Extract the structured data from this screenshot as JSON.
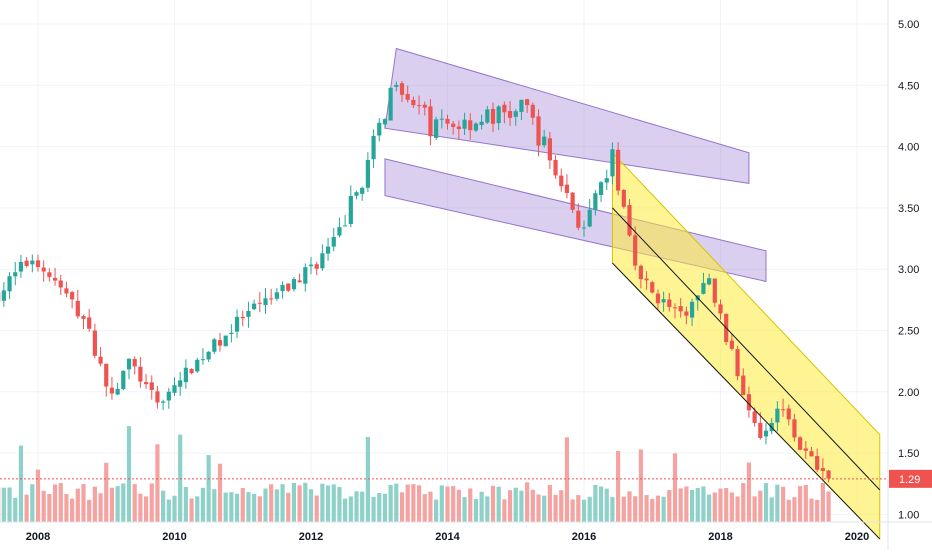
{
  "chart_data": {
    "type": "candlestick",
    "interval": "monthly",
    "x_axis": {
      "ticks": [
        "2008",
        "2010",
        "2012",
        "2014",
        "2016",
        "2018",
        "2020"
      ],
      "range": [
        "2007-06",
        "2020-05"
      ]
    },
    "y_axis": {
      "position": "right",
      "ticks": [
        "1.00",
        "1.50",
        "2.00",
        "2.50",
        "3.00",
        "3.50",
        "4.00",
        "4.50",
        "5.00"
      ],
      "range": [
        0.95,
        5.1
      ]
    },
    "grid": true,
    "last_price": {
      "label": "1.29",
      "value": 1.29
    },
    "colors": {
      "up": "#26a69a",
      "down": "#ef5350",
      "volume_up": "#8dd1c9",
      "volume_down": "#f5a3a1",
      "last_price": "#ef5350",
      "channel_purple": "#9575cd",
      "channel_yellow": "#ffeb3b",
      "grid": "#f0f3fa"
    },
    "anchors": [
      {
        "t": "2007-06",
        "c": 2.8
      },
      {
        "t": "2007-12",
        "c": 3.1
      },
      {
        "t": "2008-03",
        "c": 2.95
      },
      {
        "t": "2008-09",
        "c": 2.6
      },
      {
        "t": "2009-02",
        "c": 1.95
      },
      {
        "t": "2009-05",
        "c": 2.25
      },
      {
        "t": "2009-10",
        "c": 1.9
      },
      {
        "t": "2010-05",
        "c": 2.25
      },
      {
        "t": "2011-01",
        "c": 2.6
      },
      {
        "t": "2011-09",
        "c": 2.85
      },
      {
        "t": "2012-05",
        "c": 3.2
      },
      {
        "t": "2012-11",
        "c": 3.85
      },
      {
        "t": "2013-04",
        "c": 4.6
      },
      {
        "t": "2013-10",
        "c": 4.15
      },
      {
        "t": "2014-04",
        "c": 4.2
      },
      {
        "t": "2015-03",
        "c": 4.3
      },
      {
        "t": "2015-09",
        "c": 3.7
      },
      {
        "t": "2016-01",
        "c": 3.3
      },
      {
        "t": "2016-06",
        "c": 3.9
      },
      {
        "t": "2016-11",
        "c": 2.9
      },
      {
        "t": "2017-06",
        "c": 2.6
      },
      {
        "t": "2017-11",
        "c": 2.9
      },
      {
        "t": "2018-05",
        "c": 2.0
      },
      {
        "t": "2018-08",
        "c": 1.65
      },
      {
        "t": "2018-12",
        "c": 1.9
      },
      {
        "t": "2019-03",
        "c": 1.55
      },
      {
        "t": "2019-08",
        "c": 1.29
      }
    ],
    "channels": [
      {
        "name": "",
        "color": "#9575cd",
        "upper": [
          [
            "2013-04",
            4.8
          ],
          [
            "2018-06",
            3.95
          ]
        ],
        "lower": [
          [
            "2013-02",
            4.15
          ],
          [
            "2018-06",
            3.7
          ]
        ]
      },
      {
        "name": "",
        "color": "#9575cd",
        "upper": [
          [
            "2013-02",
            3.9
          ],
          [
            "2018-09",
            3.15
          ]
        ],
        "lower": [
          [
            "2013-02",
            3.6
          ],
          [
            "2018-09",
            2.9
          ]
        ]
      },
      {
        "name": "",
        "color": "#ffeb3b",
        "upper": [
          [
            "2016-06",
            3.95
          ],
          [
            "2020-05",
            1.65
          ]
        ],
        "lower": [
          [
            "2016-06",
            3.05
          ],
          [
            "2020-05",
            0.8
          ]
        ]
      }
    ],
    "trend_lines": [
      [
        [
          "2016-06",
          3.5
        ],
        [
          "2020-05",
          1.2
        ]
      ],
      [
        [
          "2016-06",
          3.05
        ],
        [
          "2020-05",
          0.8
        ]
      ]
    ]
  }
}
